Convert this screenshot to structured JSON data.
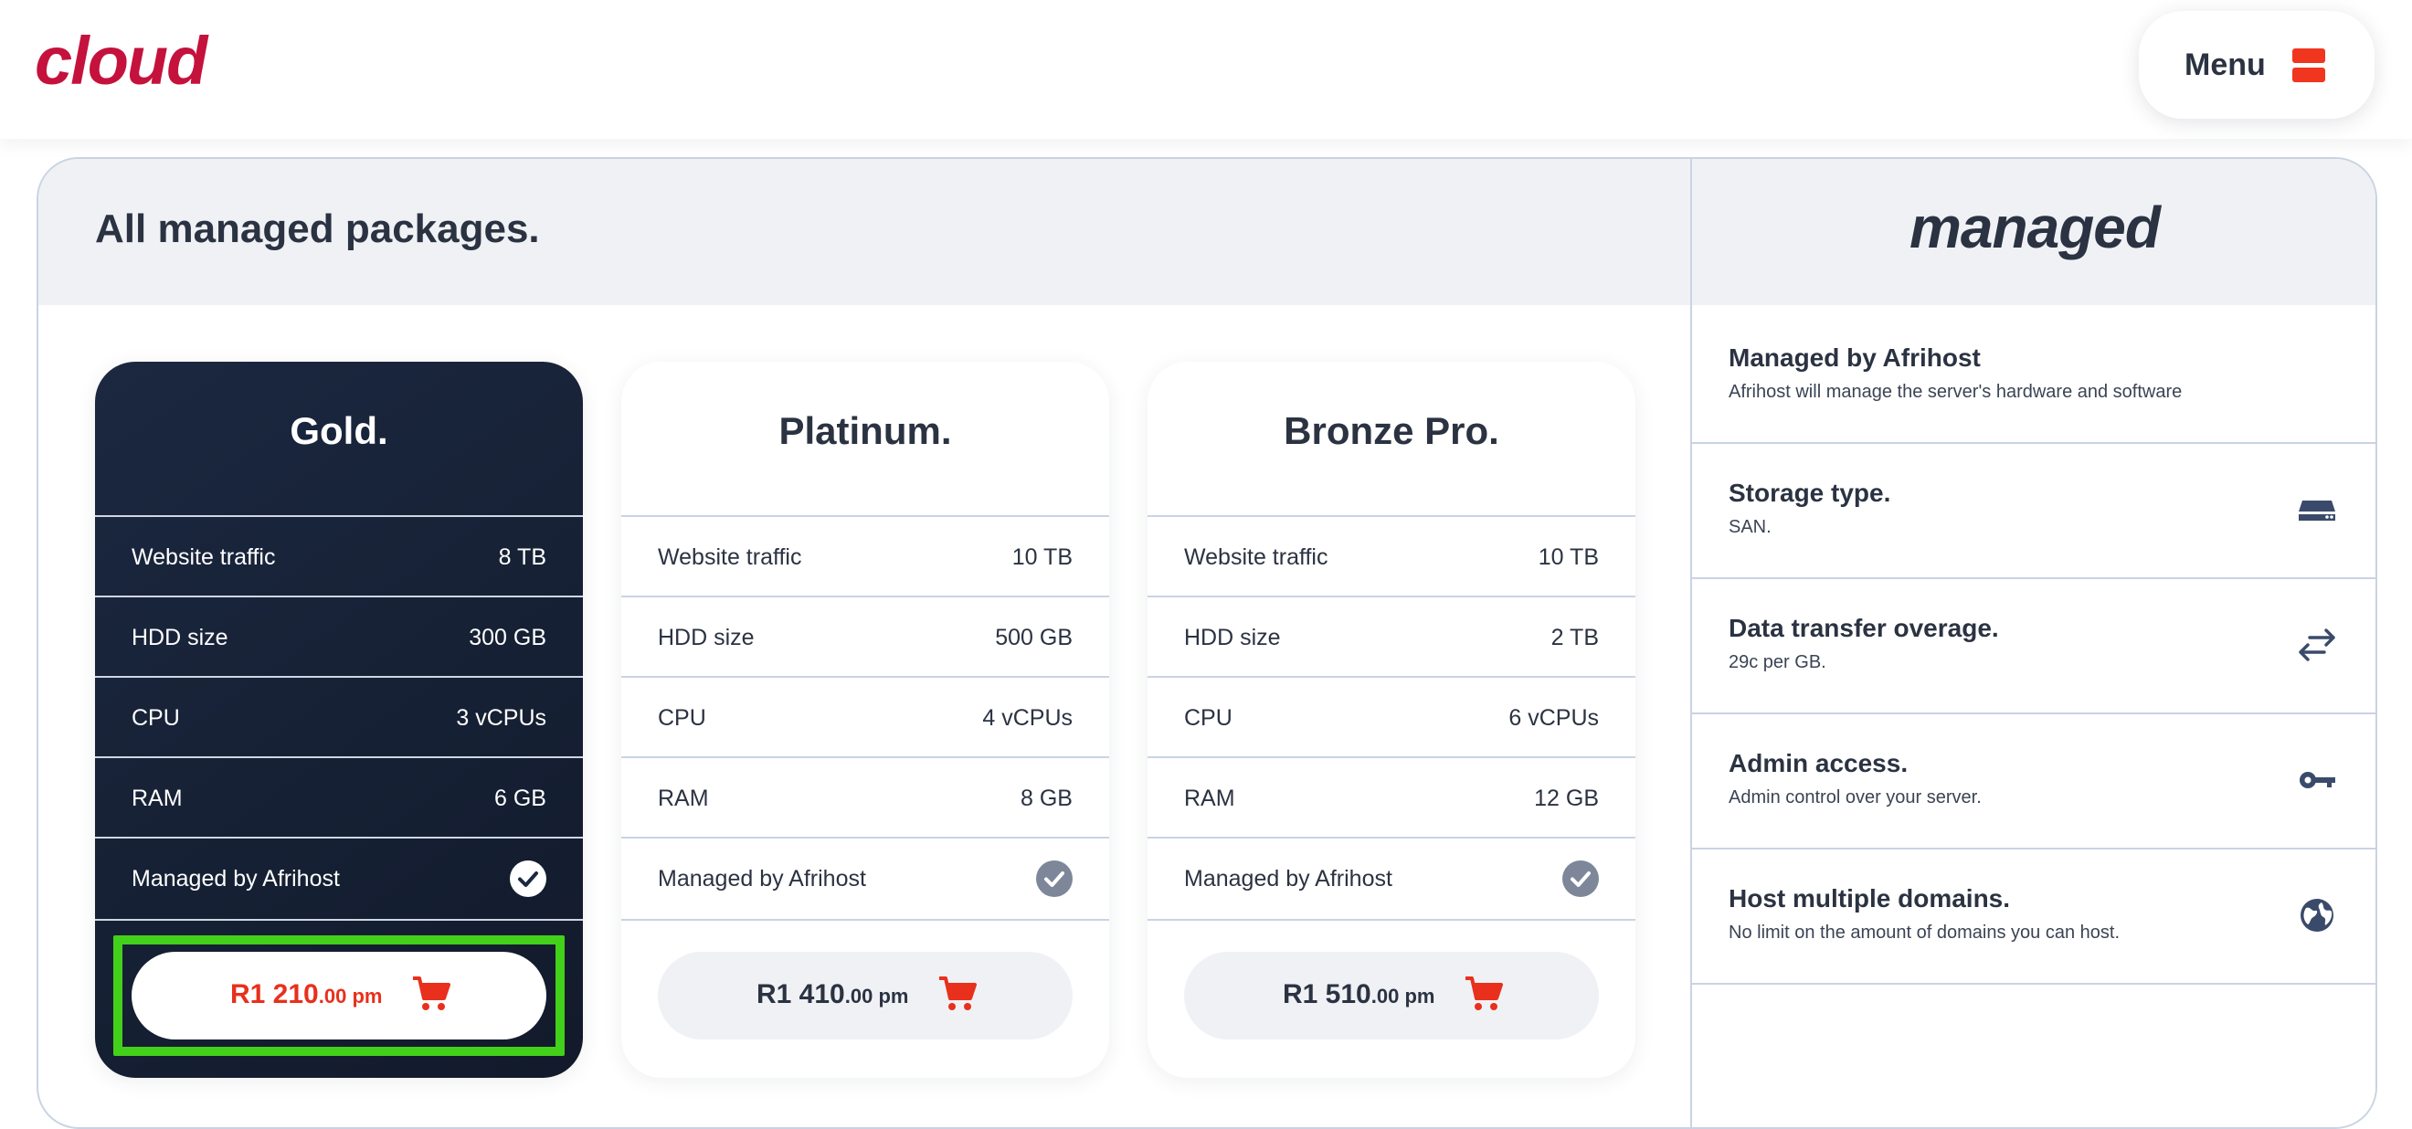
{
  "header": {
    "logo_text": "cloud",
    "menu_label": "Menu",
    "menu_icon": "menu-icon",
    "colors": {
      "logo": "#c4123d",
      "accent": "#f0361f"
    }
  },
  "main": {
    "title": "All managed packages."
  },
  "packages": [
    {
      "name": "Gold.",
      "featured": true,
      "specs": [
        {
          "label": "Website traffic",
          "value": "8 TB"
        },
        {
          "label": "HDD size",
          "value": "300 GB"
        },
        {
          "label": "CPU",
          "value": "3 vCPUs"
        },
        {
          "label": "RAM",
          "value": "6 GB"
        }
      ],
      "managed_label": "Managed by Afrihost",
      "price_main": "R1 210",
      "price_suffix": ".00 pm"
    },
    {
      "name": "Platinum.",
      "featured": false,
      "specs": [
        {
          "label": "Website traffic",
          "value": "10 TB"
        },
        {
          "label": "HDD size",
          "value": "500 GB"
        },
        {
          "label": "CPU",
          "value": "4 vCPUs"
        },
        {
          "label": "RAM",
          "value": "8 GB"
        }
      ],
      "managed_label": "Managed by Afrihost",
      "price_main": "R1 410",
      "price_suffix": ".00 pm"
    },
    {
      "name": "Bronze Pro.",
      "featured": false,
      "specs": [
        {
          "label": "Website traffic",
          "value": "10 TB"
        },
        {
          "label": "HDD size",
          "value": "2 TB"
        },
        {
          "label": "CPU",
          "value": "6 vCPUs"
        },
        {
          "label": "RAM",
          "value": "12 GB"
        }
      ],
      "managed_label": "Managed by Afrihost",
      "price_main": "R1 510",
      "price_suffix": ".00 pm"
    }
  ],
  "side": {
    "brand": "managed",
    "features": [
      {
        "title": "Managed by Afrihost",
        "desc": "Afrihost will manage the server's hardware and software",
        "icon": ""
      },
      {
        "title": "Storage type.",
        "desc": "SAN.",
        "icon": "storage-icon"
      },
      {
        "title": "Data transfer overage.",
        "desc": "29c per GB.",
        "icon": "transfer-arrows-icon"
      },
      {
        "title": "Admin access.",
        "desc": "Admin control over your server.",
        "icon": "key-icon"
      },
      {
        "title": "Host multiple domains.",
        "desc": "No limit on the amount of domains you can host.",
        "icon": "globe-icon"
      }
    ]
  },
  "colors": {
    "dark_text": "#2b3342",
    "card_dark": "#1b2840",
    "price_red": "#e8301c",
    "highlight_green": "#43d01a"
  }
}
